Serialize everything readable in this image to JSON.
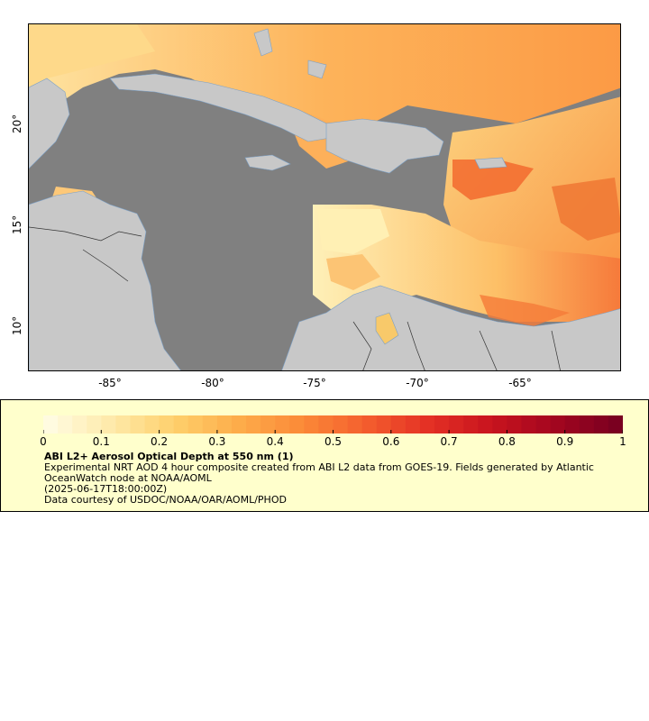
{
  "map": {
    "y_ticks": [
      {
        "label": "20°"
      },
      {
        "label": "15°"
      },
      {
        "label": "10°"
      }
    ],
    "x_ticks": [
      {
        "label": "-85°"
      },
      {
        "label": "-80°"
      },
      {
        "label": "-75°"
      },
      {
        "label": "-70°"
      },
      {
        "label": "-65°"
      }
    ],
    "extent": {
      "lon": [
        -89,
        -60
      ],
      "lat": [
        8,
        25
      ]
    },
    "colors": {
      "ocean": "#808080",
      "land": "#c8c8c8",
      "frame": "#000000"
    }
  },
  "colorbar": {
    "tick_labels": [
      "0",
      "0.1",
      "0.2",
      "0.3",
      "0.4",
      "0.5",
      "0.6",
      "0.7",
      "0.8",
      "0.9",
      "1"
    ],
    "range": [
      0,
      1
    ],
    "stops": [
      "#fffbe0",
      "#fee9a8",
      "#fecf6a",
      "#fdac4a",
      "#fb8a38",
      "#f45f2e",
      "#e43125",
      "#c9141e",
      "#a4061f",
      "#7a0020"
    ]
  },
  "legend": {
    "title": "ABI L2+ Aerosol Optical Depth at 550 nm (1)",
    "description": "Experimental NRT AOD 4 hour composite created from ABI L2 data from GOES-19. Fields generated by Atlantic OceanWatch node at NOAA/AOML",
    "timestamp": "(2025-06-17T18:00:00Z)",
    "credit": "Data courtesy of USDOC/NOAA/OAR/AOML/PHOD",
    "background": "#ffffcc"
  }
}
